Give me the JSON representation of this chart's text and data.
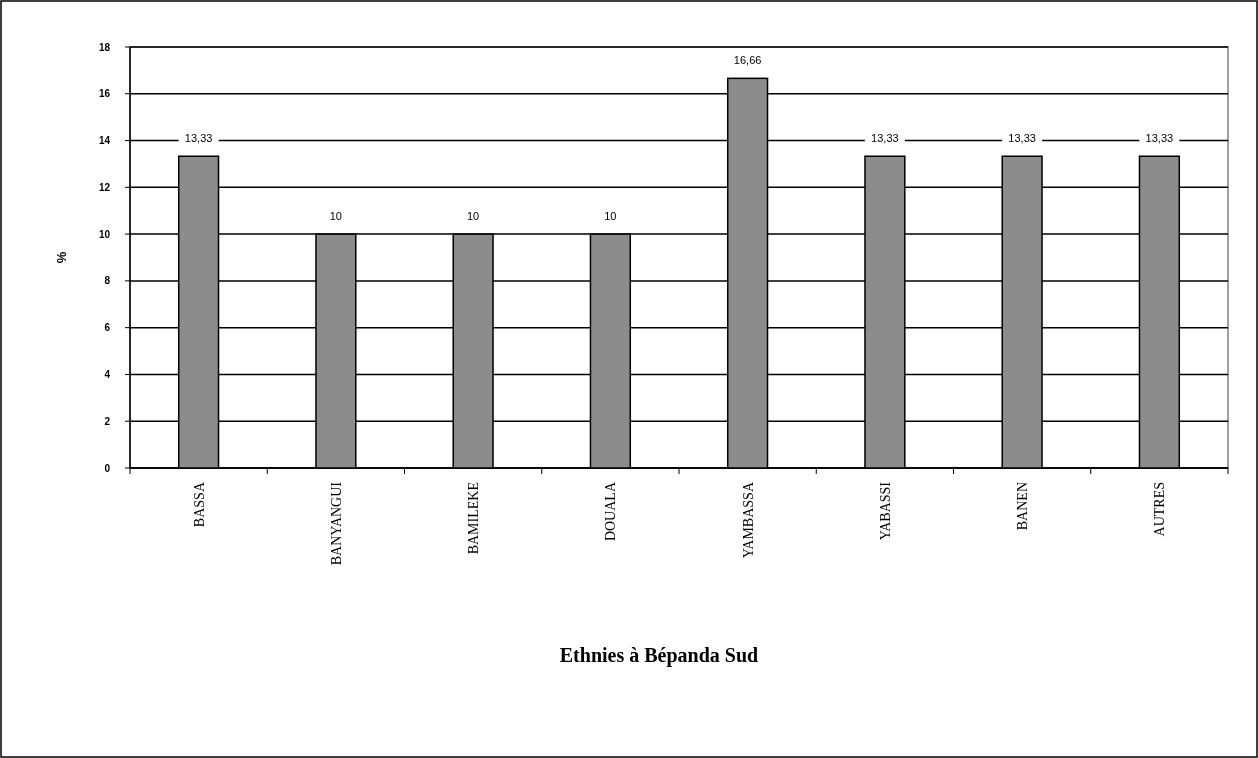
{
  "chart_data": {
    "type": "bar",
    "title": "Ethnies à Bépanda Sud",
    "ylabel": "%",
    "categories": [
      "BASSA",
      "BANYANGUI",
      "BAMILEKE",
      "DOUALA",
      "YAMBASSA",
      "YABASSI",
      "BANEN",
      "AUTRES"
    ],
    "values": [
      13.33,
      10,
      10,
      10,
      16.66,
      13.33,
      13.33,
      13.33
    ],
    "value_labels": [
      "13,33",
      "10",
      "10",
      "10",
      "16,66",
      "13,33",
      "13,33",
      "13,33"
    ],
    "color": "#8c8c8c",
    "ylim": [
      0,
      18
    ],
    "yticks": [
      0,
      2,
      4,
      6,
      8,
      10,
      12,
      14,
      16,
      18
    ],
    "grid": "y"
  }
}
